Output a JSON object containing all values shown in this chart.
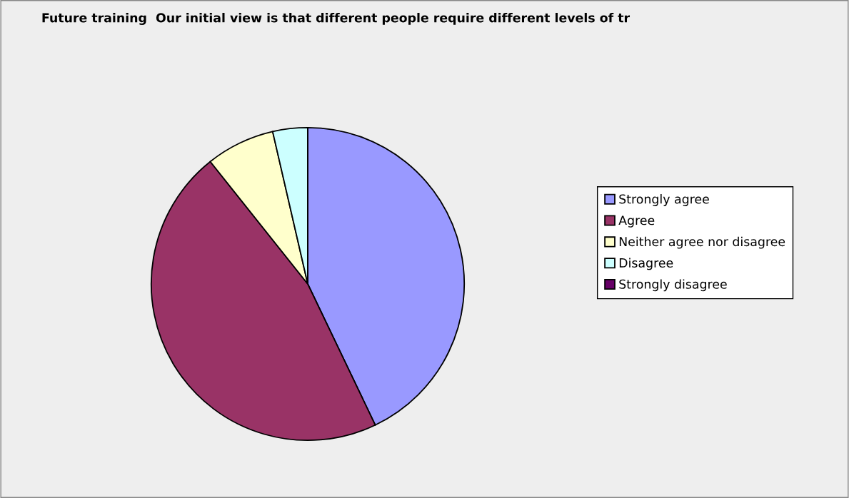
{
  "chart_data": {
    "type": "pie",
    "title": "Future training  Our initial view is that different people require different levels of tr",
    "categories": [
      "Strongly agree",
      "Agree",
      "Neither agree nor disagree",
      "Disagree",
      "Strongly disagree"
    ],
    "values": [
      42.9,
      46.4,
      7.1,
      3.6,
      0
    ],
    "colors": [
      "#9999ff",
      "#993366",
      "#ffffcc",
      "#ccffff",
      "#660066"
    ],
    "legend": "right"
  }
}
